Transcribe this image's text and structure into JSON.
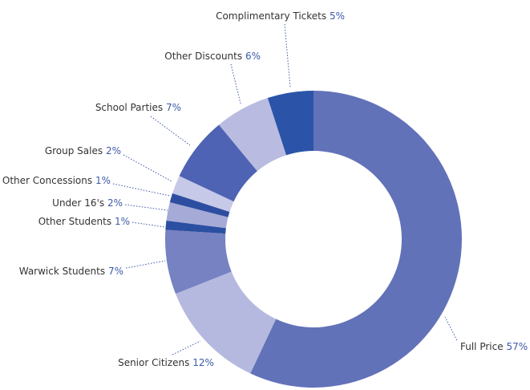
{
  "chart_data": {
    "type": "donut",
    "categories": [
      "Full Price",
      "Senior Citizens",
      "Warwick Students",
      "Other Students",
      "Under 16's",
      "Other Concessions",
      "Group Sales",
      "School Parties",
      "Other Discounts",
      "Complimentary Tickets"
    ],
    "values": [
      57,
      12,
      7,
      1,
      2,
      1,
      2,
      7,
      6,
      5
    ],
    "value_labels": [
      "57%",
      "12%",
      "7%",
      "1%",
      "2%",
      "1%",
      "2%",
      "7%",
      "6%",
      "5%"
    ],
    "colors": [
      "#6272b8",
      "#b5b9df",
      "#7682c2",
      "#2b4fa1",
      "#a5aad6",
      "#2d4ea0",
      "#c6c9e7",
      "#4e63b3",
      "#b9bce0",
      "#2b54a8"
    ]
  }
}
